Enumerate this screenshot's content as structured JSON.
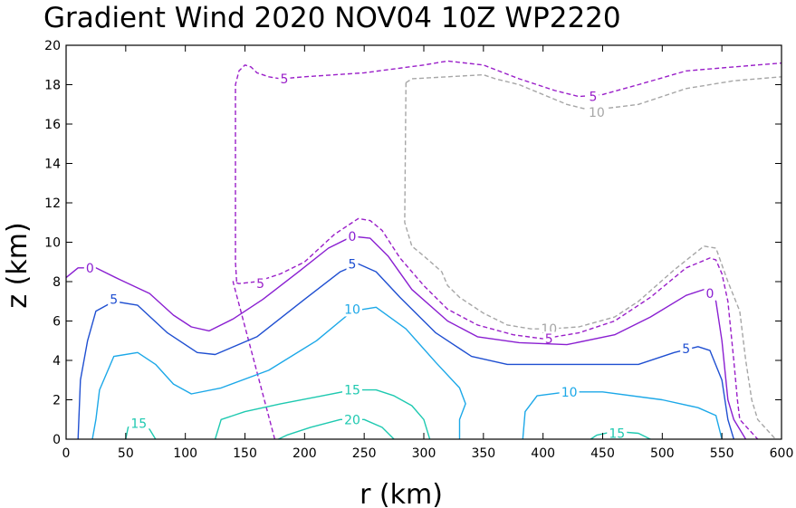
{
  "chart_data": {
    "type": "line",
    "chart_kind": "contour",
    "title": "Gradient Wind 2020 NOV04 10Z  WP2220",
    "xlabel": "r (km)",
    "ylabel": "z (km)",
    "xlim": [
      0,
      600
    ],
    "ylim": [
      0,
      20
    ],
    "xticks": [
      0,
      50,
      100,
      150,
      200,
      250,
      300,
      350,
      400,
      450,
      500,
      550,
      600
    ],
    "yticks": [
      0,
      2,
      4,
      6,
      8,
      10,
      12,
      14,
      16,
      18,
      20
    ],
    "series": [
      {
        "name": "-10",
        "color": "#a6a6a6",
        "dashed": true,
        "points": [
          [
            285,
            18.1
          ],
          [
            290,
            18.3
          ],
          [
            350,
            18.5
          ],
          [
            360,
            18.3
          ],
          [
            380,
            18.0
          ],
          [
            420,
            17.0
          ],
          [
            440,
            16.7
          ],
          [
            480,
            17.0
          ],
          [
            520,
            17.8
          ],
          [
            560,
            18.2
          ],
          [
            600,
            18.4
          ]
        ],
        "labels": [
          {
            "text": "10",
            "x": 445,
            "y": 16.6
          }
        ]
      },
      {
        "name": "-10-lower",
        "color": "#a6a6a6",
        "dashed": true,
        "points": [
          [
            285,
            18.1
          ],
          [
            284,
            11.0
          ],
          [
            290,
            9.8
          ],
          [
            300,
            9.3
          ],
          [
            315,
            8.5
          ],
          [
            320,
            7.8
          ],
          [
            330,
            7.2
          ],
          [
            350,
            6.4
          ],
          [
            370,
            5.8
          ],
          [
            390,
            5.6
          ],
          [
            405,
            5.6
          ],
          [
            430,
            5.7
          ],
          [
            460,
            6.2
          ],
          [
            480,
            7.0
          ],
          [
            510,
            8.6
          ],
          [
            535,
            9.8
          ],
          [
            545,
            9.7
          ],
          [
            555,
            8.0
          ],
          [
            565,
            6.5
          ],
          [
            570,
            4.0
          ],
          [
            575,
            2.0
          ],
          [
            580,
            1.0
          ],
          [
            595,
            0
          ]
        ],
        "labels": [
          {
            "text": "10",
            "x": 405,
            "y": 5.6
          }
        ]
      },
      {
        "name": "-5",
        "color": "#9a1fc9",
        "dashed": true,
        "points": [
          [
            175,
            0
          ],
          [
            175,
            0
          ],
          [
            140,
            8.0
          ],
          [
            145,
            7.9
          ],
          [
            160,
            8.0
          ],
          [
            180,
            8.4
          ],
          [
            200,
            9.0
          ],
          [
            225,
            10.4
          ],
          [
            245,
            11.2
          ],
          [
            255,
            11.1
          ],
          [
            265,
            10.6
          ],
          [
            280,
            9.2
          ],
          [
            300,
            7.8
          ],
          [
            320,
            6.6
          ],
          [
            345,
            5.8
          ],
          [
            375,
            5.3
          ],
          [
            400,
            5.1
          ],
          [
            430,
            5.4
          ],
          [
            460,
            6.0
          ],
          [
            490,
            7.2
          ],
          [
            520,
            8.7
          ],
          [
            540,
            9.2
          ],
          [
            545,
            9.1
          ],
          [
            550,
            8.4
          ],
          [
            555,
            7.0
          ],
          [
            560,
            4.0
          ],
          [
            563,
            2.0
          ],
          [
            565,
            1.0
          ],
          [
            580,
            0
          ]
        ],
        "labels": [
          {
            "text": "5",
            "x": 163,
            "y": 7.9
          },
          {
            "text": "5",
            "x": 405,
            "y": 5.1
          }
        ]
      },
      {
        "name": "-5-upper",
        "color": "#9a1fc9",
        "dashed": true,
        "points": [
          [
            143,
            8.0
          ],
          [
            142,
            9.0
          ],
          [
            142,
            17.0
          ],
          [
            142,
            18.0
          ],
          [
            145,
            18.7
          ],
          [
            150,
            19.0
          ],
          [
            155,
            18.9
          ],
          [
            160,
            18.6
          ],
          [
            170,
            18.4
          ],
          [
            180,
            18.3
          ],
          [
            200,
            18.4
          ],
          [
            250,
            18.6
          ],
          [
            300,
            19.0
          ],
          [
            320,
            19.2
          ],
          [
            350,
            19.0
          ],
          [
            380,
            18.3
          ],
          [
            410,
            17.7
          ],
          [
            430,
            17.4
          ],
          [
            450,
            17.5
          ],
          [
            480,
            18.0
          ],
          [
            520,
            18.7
          ],
          [
            560,
            18.9
          ],
          [
            600,
            19.1
          ]
        ],
        "labels": [
          {
            "text": "5",
            "x": 183,
            "y": 18.3
          },
          {
            "text": "5",
            "x": 442,
            "y": 17.4
          }
        ]
      },
      {
        "name": "0",
        "color": "#8a1fd1",
        "dashed": false,
        "points": [
          [
            0,
            8.2
          ],
          [
            10,
            8.7
          ],
          [
            25,
            8.7
          ],
          [
            45,
            8.1
          ],
          [
            70,
            7.4
          ],
          [
            90,
            6.3
          ],
          [
            105,
            5.7
          ],
          [
            120,
            5.5
          ],
          [
            140,
            6.1
          ],
          [
            165,
            7.1
          ],
          [
            195,
            8.5
          ],
          [
            220,
            9.7
          ],
          [
            240,
            10.3
          ],
          [
            255,
            10.2
          ],
          [
            270,
            9.3
          ],
          [
            290,
            7.6
          ],
          [
            320,
            6.0
          ],
          [
            345,
            5.2
          ],
          [
            380,
            4.9
          ],
          [
            420,
            4.8
          ],
          [
            460,
            5.3
          ],
          [
            490,
            6.2
          ],
          [
            520,
            7.3
          ],
          [
            540,
            7.7
          ],
          [
            545,
            7.0
          ],
          [
            550,
            5.0
          ],
          [
            555,
            2.0
          ],
          [
            560,
            1.0
          ],
          [
            570,
            0
          ]
        ],
        "labels": [
          {
            "text": "0",
            "x": 20,
            "y": 8.7
          },
          {
            "text": "0",
            "x": 240,
            "y": 10.3
          },
          {
            "text": "0",
            "x": 540,
            "y": 7.4
          }
        ]
      },
      {
        "name": "5",
        "color": "#1f4fd1",
        "dashed": false,
        "points": [
          [
            10,
            0
          ],
          [
            12,
            3.0
          ],
          [
            18,
            5.0
          ],
          [
            25,
            6.5
          ],
          [
            40,
            7.0
          ],
          [
            60,
            6.8
          ],
          [
            85,
            5.4
          ],
          [
            110,
            4.4
          ],
          [
            125,
            4.3
          ],
          [
            160,
            5.2
          ],
          [
            200,
            7.1
          ],
          [
            230,
            8.5
          ],
          [
            245,
            8.9
          ],
          [
            260,
            8.5
          ],
          [
            280,
            7.2
          ],
          [
            310,
            5.4
          ],
          [
            340,
            4.2
          ],
          [
            370,
            3.8
          ],
          [
            400,
            3.8
          ],
          [
            440,
            3.8
          ],
          [
            480,
            3.8
          ],
          [
            510,
            4.4
          ],
          [
            530,
            4.7
          ],
          [
            540,
            4.5
          ],
          [
            550,
            3.0
          ],
          [
            555,
            1.0
          ],
          [
            560,
            0
          ]
        ],
        "labels": [
          {
            "text": "5",
            "x": 40,
            "y": 7.1
          },
          {
            "text": "5",
            "x": 240,
            "y": 8.9
          },
          {
            "text": "5",
            "x": 520,
            "y": 4.6
          }
        ]
      },
      {
        "name": "10",
        "color": "#1ca8e8",
        "dashed": false,
        "points": [
          [
            22,
            0
          ],
          [
            25,
            1.0
          ],
          [
            28,
            2.5
          ],
          [
            40,
            4.2
          ],
          [
            60,
            4.4
          ],
          [
            75,
            3.8
          ],
          [
            90,
            2.8
          ],
          [
            105,
            2.3
          ],
          [
            130,
            2.6
          ],
          [
            170,
            3.5
          ],
          [
            210,
            5.0
          ],
          [
            240,
            6.5
          ],
          [
            260,
            6.7
          ],
          [
            285,
            5.6
          ],
          [
            310,
            3.9
          ],
          [
            330,
            2.6
          ],
          [
            335,
            1.8
          ],
          [
            330,
            1.0
          ],
          [
            330,
            0
          ]
        ],
        "labels": [
          {
            "text": "10",
            "x": 240,
            "y": 6.6
          }
        ]
      },
      {
        "name": "10-right",
        "color": "#1ca8e8",
        "dashed": false,
        "points": [
          [
            383,
            0
          ],
          [
            385,
            1.4
          ],
          [
            395,
            2.2
          ],
          [
            420,
            2.4
          ],
          [
            450,
            2.4
          ],
          [
            500,
            2.0
          ],
          [
            530,
            1.6
          ],
          [
            545,
            1.2
          ],
          [
            550,
            0
          ]
        ],
        "labels": [
          {
            "text": "10",
            "x": 422,
            "y": 2.4
          }
        ]
      },
      {
        "name": "15",
        "color": "#1ec9b0",
        "dashed": false,
        "points": [
          [
            125,
            0
          ],
          [
            130,
            1.0
          ],
          [
            150,
            1.4
          ],
          [
            180,
            1.8
          ],
          [
            215,
            2.2
          ],
          [
            240,
            2.5
          ],
          [
            260,
            2.5
          ],
          [
            275,
            2.2
          ],
          [
            290,
            1.7
          ],
          [
            300,
            1.0
          ],
          [
            305,
            0
          ]
        ],
        "labels": [
          {
            "text": "15",
            "x": 240,
            "y": 2.5
          }
        ]
      },
      {
        "name": "15-left",
        "color": "#1ec9b0",
        "dashed": false,
        "points": [
          [
            50,
            0
          ],
          [
            52,
            0.6
          ],
          [
            60,
            0.8
          ],
          [
            70,
            0.5
          ],
          [
            75,
            0
          ]
        ],
        "labels": [
          {
            "text": "15",
            "x": 61,
            "y": 0.8
          }
        ]
      },
      {
        "name": "15-right",
        "color": "#1ec9b0",
        "dashed": false,
        "points": [
          [
            440,
            0
          ],
          [
            445,
            0.2
          ],
          [
            460,
            0.4
          ],
          [
            480,
            0.3
          ],
          [
            490,
            0
          ]
        ],
        "labels": [
          {
            "text": "15",
            "x": 462,
            "y": 0.3
          }
        ]
      },
      {
        "name": "20",
        "color": "#1ec9b0",
        "dashed": false,
        "points": [
          [
            178,
            0
          ],
          [
            185,
            0.2
          ],
          [
            205,
            0.6
          ],
          [
            230,
            1.0
          ],
          [
            250,
            1.0
          ],
          [
            265,
            0.6
          ],
          [
            275,
            0
          ]
        ],
        "labels": [
          {
            "text": "20",
            "x": 240,
            "y": 1.0
          }
        ]
      }
    ]
  }
}
